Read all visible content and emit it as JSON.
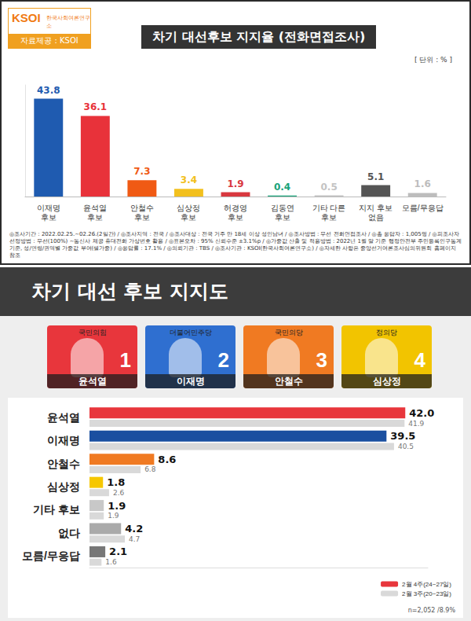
{
  "chart_data": [
    {
      "type": "bar",
      "title": "차기 대선후보 지지율 (전화면접조사)",
      "subtitle": "[ 단위 : % ]",
      "logo": [
        "KSOI",
        "한국사회여론연구소"
      ],
      "source": "자료제공 : KSOI",
      "annotations": [
        "◎조사기간 : 2022.02.25.~02.26.(2일간) / ◎조사지역 : 전국 / ◎조사대상 : 전국 거주 만 18세 이상 성인남녀 / ◎조사방법 : 무선 전화면접조사 / ◎총 응답자 : 1,005명 / ◎피조사자선정방법 : 무선(100%) ~통신사 제공 휴대전화 가상번호 활용 / ◎표본오차 : 95% 신뢰수준 ±3.1%p / ◎가중값 산출 및 적용방법 : 2022년 1월 말 기준 행정안전부 주민등록인구통계 기준, 성/연령/권역별 가중값 부여(셀가중) / ◎응답률 : 17.1% / ◎의뢰기관 : TBS / ◎조사기관 : KSOI(한국사회여론연구소) / ◎자세한 사항은 중앙선거여론조사심의위원회 홈페이지 참조"
      ],
      "categories": [
        "이재명 후보",
        "윤석열 후보",
        "안철수 후보",
        "심상정 후보",
        "허경영 후보",
        "김동연 후보",
        "기타 다른 후보",
        "지지 후보 없음",
        "모름/무응답"
      ],
      "values": [
        43.8,
        36.1,
        7.3,
        3.4,
        1.9,
        0.4,
        0.5,
        5.1,
        1.6
      ],
      "colors": [
        "#1f5bb0",
        "#e8323a",
        "#f05a14",
        "#f2c01e",
        "#d8383f",
        "#1aa37a",
        "#c4c4c4",
        "#555555",
        "#bdbdbd"
      ],
      "ylim": [
        0,
        50
      ],
      "grid": false,
      "data_labels": true,
      "tick_labels": "x"
    },
    {
      "type": "bar",
      "title": "차기 대선 후보 지지도",
      "orientation": "horizontal",
      "candidates": [
        {
          "party": "국민의힘",
          "number": "1",
          "name": "윤석열",
          "color": "#e8363c"
        },
        {
          "party": "더불어민주당",
          "number": "2",
          "name": "이재명",
          "color": "#2f6fd0"
        },
        {
          "party": "국민의당",
          "number": "3",
          "name": "안철수",
          "color": "#f07a22"
        },
        {
          "party": "정의당",
          "number": "4",
          "name": "심상정",
          "color": "#f2c400"
        }
      ],
      "categories": [
        "윤석열",
        "이재명",
        "안철수",
        "심상정",
        "기타 후보",
        "없다",
        "모름/무응답"
      ],
      "series": [
        {
          "name": "2월 4주(24~27일)",
          "values": [
            42.0,
            39.5,
            8.6,
            1.8,
            1.9,
            4.2,
            2.1
          ],
          "value_labels": [
            "42.0",
            "39.5",
            "8.6",
            "1.8",
            "1.9",
            "4.2",
            "2.1"
          ],
          "colors": [
            "#e8363c",
            "#1a4fa0",
            "#f07a22",
            "#f6c700",
            "#c8c8c8",
            "#aaaaaa",
            "#777777"
          ]
        },
        {
          "name": "2월 3주(20~23일)",
          "values": [
            41.9,
            40.5,
            6.8,
            2.6,
            1.9,
            4.7,
            1.6
          ],
          "color": "#d9d9d9"
        }
      ],
      "annotations": [
        "n=2,052 /8.9%"
      ],
      "xlim": [
        0,
        45
      ],
      "grid": false,
      "data_labels": true,
      "tick_labels": "y",
      "legend": "bottom-right"
    }
  ]
}
